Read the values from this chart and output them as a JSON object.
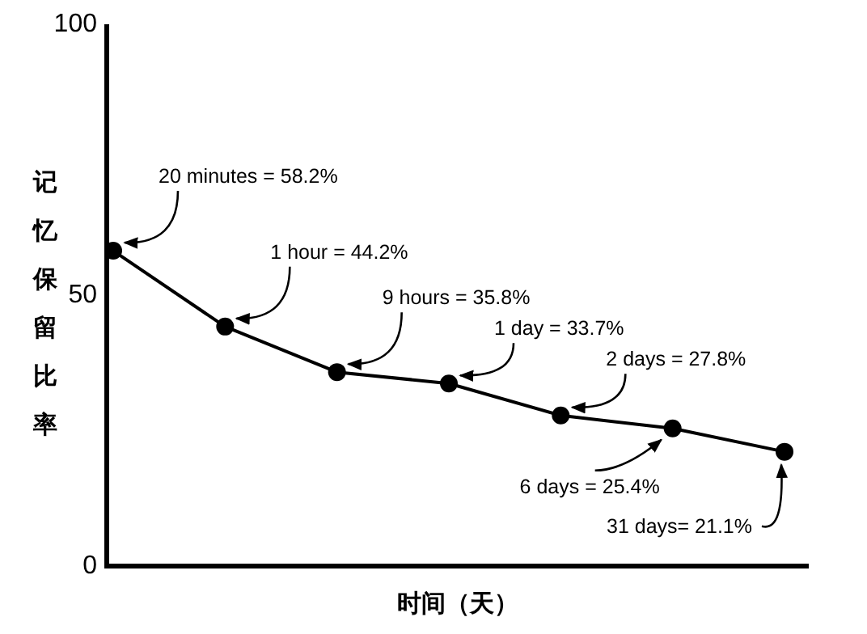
{
  "chart_data": {
    "type": "line",
    "xlabel": "时间（天）",
    "ylabel": "记忆保留比率",
    "categories": [
      null,
      null,
      null,
      null,
      null,
      null,
      null
    ],
    "series": [
      {
        "color": "#000000",
        "values": [
          58.2,
          44.2,
          35.8,
          33.7,
          27.8,
          25.4,
          21.1
        ],
        "value_labels": [
          "20 minutes = 58.2%",
          "1 hour = 44.2%",
          "9 hours = 35.8%",
          "1 day = 33.7%",
          "2 days = 27.8%",
          "6 days = 25.4%",
          "31 days= 21.1%"
        ]
      }
    ],
    "ylim": [
      0,
      100
    ],
    "yticks": [
      0,
      50,
      100
    ],
    "marker": "circle",
    "line_style": "solid",
    "grid": false
  }
}
